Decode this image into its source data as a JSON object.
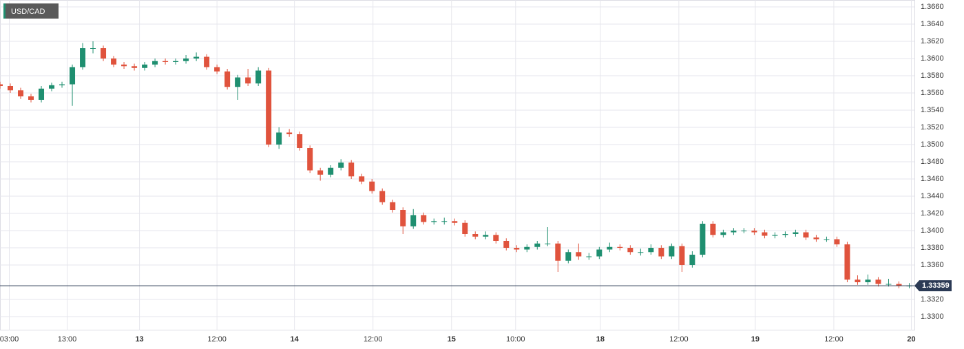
{
  "chart_data": {
    "type": "candlestick",
    "title": "USD/CAD",
    "open": [
      1.357,
      1.3568,
      1.3563,
      1.3556,
      1.3552,
      1.3565,
      1.3569,
      1.357,
      1.359,
      1.3612,
      1.3612,
      1.36,
      1.3593,
      1.3591,
      1.3589,
      1.3593,
      1.3597,
      1.3596,
      1.3597,
      1.36,
      1.3602,
      1.359,
      1.3585,
      1.3567,
      1.3578,
      1.3571,
      1.3586,
      1.35,
      1.3514,
      1.3512,
      1.3496,
      1.347,
      1.3465,
      1.3473,
      1.3479,
      1.3463,
      1.3457,
      1.3446,
      1.3433,
      1.3424,
      1.3405,
      1.3418,
      1.341,
      1.3411,
      1.3411,
      1.3409,
      1.3396,
      1.3393,
      1.3395,
      1.3388,
      1.338,
      1.3378,
      1.3381,
      1.3385,
      1.3385,
      1.3365,
      1.3375,
      1.337,
      1.337,
      1.3378,
      1.3381,
      1.338,
      1.3375,
      1.3375,
      1.338,
      1.337,
      1.3382,
      1.336,
      1.3372,
      1.3408,
      1.3395,
      1.3398,
      1.34,
      1.34,
      1.3398,
      1.3394,
      1.3395,
      1.3396,
      1.3398,
      1.3392,
      1.339,
      1.339,
      1.3384,
      1.3343,
      1.334,
      1.3343,
      1.3338,
      1.3338,
      1.3336
    ],
    "high": [
      1.3573,
      1.3571,
      1.3566,
      1.3559,
      1.3568,
      1.3572,
      1.3573,
      1.3593,
      1.3618,
      1.362,
      1.3615,
      1.3603,
      1.3596,
      1.3594,
      1.3596,
      1.36,
      1.36,
      1.36,
      1.3604,
      1.3607,
      1.3605,
      1.3593,
      1.3588,
      1.3581,
      1.3588,
      1.359,
      1.3589,
      1.352,
      1.3518,
      1.3515,
      1.3499,
      1.3473,
      1.3476,
      1.3483,
      1.3482,
      1.3466,
      1.346,
      1.3449,
      1.3436,
      1.3427,
      1.3425,
      1.3421,
      1.3414,
      1.3415,
      1.3414,
      1.3412,
      1.3399,
      1.3399,
      1.3398,
      1.3391,
      1.3383,
      1.3384,
      1.3388,
      1.3404,
      1.3388,
      1.3378,
      1.3385,
      1.3374,
      1.3381,
      1.3386,
      1.3384,
      1.3383,
      1.3379,
      1.3384,
      1.3383,
      1.3385,
      1.3385,
      1.3376,
      1.3411,
      1.3411,
      1.3401,
      1.3403,
      1.3403,
      1.3403,
      1.3401,
      1.3398,
      1.3399,
      1.3401,
      1.3401,
      1.3395,
      1.3393,
      1.3393,
      1.3387,
      1.3348,
      1.3349,
      1.3346,
      1.3344,
      1.3341,
      1.3339
    ],
    "low": [
      1.3565,
      1.356,
      1.3553,
      1.3549,
      1.3549,
      1.3562,
      1.3566,
      1.3545,
      1.3587,
      1.3606,
      1.3597,
      1.359,
      1.3588,
      1.3586,
      1.3586,
      1.359,
      1.3593,
      1.3593,
      1.3594,
      1.3597,
      1.3587,
      1.3582,
      1.3564,
      1.3552,
      1.3568,
      1.3568,
      1.3497,
      1.3495,
      1.3509,
      1.3493,
      1.3467,
      1.3458,
      1.3462,
      1.347,
      1.346,
      1.3454,
      1.3443,
      1.343,
      1.3421,
      1.3396,
      1.3402,
      1.3407,
      1.3407,
      1.3407,
      1.3406,
      1.3393,
      1.339,
      1.339,
      1.3385,
      1.3377,
      1.3375,
      1.3375,
      1.3378,
      1.3382,
      1.3352,
      1.3362,
      1.3366,
      1.3366,
      1.3367,
      1.3375,
      1.3377,
      1.3372,
      1.3371,
      1.3372,
      1.3367,
      1.3367,
      1.3352,
      1.3357,
      1.3369,
      1.3392,
      1.3392,
      1.3395,
      1.3397,
      1.3395,
      1.3391,
      1.3391,
      1.3392,
      1.3393,
      1.3389,
      1.3387,
      1.3387,
      1.3381,
      1.334,
      1.3337,
      1.3337,
      1.3335,
      1.3335,
      1.3333,
      1.3333
    ],
    "close": [
      1.3568,
      1.3563,
      1.3556,
      1.3552,
      1.3565,
      1.3569,
      1.357,
      1.359,
      1.3612,
      1.3612,
      1.36,
      1.3593,
      1.3591,
      1.3589,
      1.3593,
      1.3597,
      1.3596,
      1.3597,
      1.36,
      1.3602,
      1.359,
      1.3585,
      1.3567,
      1.3578,
      1.3571,
      1.3586,
      1.35,
      1.3514,
      1.3512,
      1.3496,
      1.347,
      1.3465,
      1.3473,
      1.3479,
      1.3463,
      1.3457,
      1.3446,
      1.3433,
      1.3424,
      1.3405,
      1.3418,
      1.341,
      1.3411,
      1.3411,
      1.3409,
      1.3396,
      1.3393,
      1.3395,
      1.3388,
      1.338,
      1.3378,
      1.3381,
      1.3385,
      1.3385,
      1.3365,
      1.3375,
      1.337,
      1.337,
      1.3378,
      1.3381,
      1.338,
      1.3375,
      1.3375,
      1.338,
      1.337,
      1.3382,
      1.336,
      1.3372,
      1.3408,
      1.3395,
      1.3398,
      1.34,
      1.34,
      1.3398,
      1.3394,
      1.3395,
      1.3396,
      1.3398,
      1.3392,
      1.339,
      1.339,
      1.3384,
      1.3343,
      1.334,
      1.3343,
      1.3338,
      1.3338,
      1.3336,
      1.3336
    ],
    "up_color": "#1f8f70",
    "down_color": "#e0533d",
    "last_price": 1.33359,
    "xlim": [
      0,
      88.5
    ],
    "xticks": [
      {
        "value": 0.9,
        "label": "03:00"
      },
      {
        "value": 6.5,
        "label": "13:00"
      },
      {
        "value": 13.5,
        "label": "13"
      },
      {
        "value": 21,
        "label": "12:00"
      },
      {
        "value": 28.5,
        "label": "14"
      },
      {
        "value": 36.1,
        "label": "12:00"
      },
      {
        "value": 43.7,
        "label": "15"
      },
      {
        "value": 49.9,
        "label": "10:00"
      },
      {
        "value": 58.1,
        "label": "18"
      },
      {
        "value": 65.7,
        "label": "12:00"
      },
      {
        "value": 73.1,
        "label": "19"
      },
      {
        "value": 80.7,
        "label": "12:00"
      },
      {
        "value": 88.2,
        "label": "20"
      }
    ],
    "ylim": [
      1.3284,
      1.3668
    ],
    "yticks": [
      {
        "value": 1.33,
        "label": "1.3300"
      },
      {
        "value": 1.332,
        "label": "1.3320"
      },
      {
        "value": 1.336,
        "label": "1.3360"
      },
      {
        "value": 1.338,
        "label": "1.3380"
      },
      {
        "value": 1.34,
        "label": "1.3400"
      },
      {
        "value": 1.342,
        "label": "1.3420"
      },
      {
        "value": 1.344,
        "label": "1.3440"
      },
      {
        "value": 1.346,
        "label": "1.3460"
      },
      {
        "value": 1.348,
        "label": "1.3480"
      },
      {
        "value": 1.35,
        "label": "1.3500"
      },
      {
        "value": 1.352,
        "label": "1.3520"
      },
      {
        "value": 1.354,
        "label": "1.3540"
      },
      {
        "value": 1.356,
        "label": "1.3560"
      },
      {
        "value": 1.358,
        "label": "1.3580"
      },
      {
        "value": 1.36,
        "label": "1.3600"
      },
      {
        "value": 1.362,
        "label": "1.3620"
      },
      {
        "value": 1.364,
        "label": "1.3640"
      },
      {
        "value": 1.366,
        "label": "1.3660"
      }
    ],
    "grid": true
  }
}
